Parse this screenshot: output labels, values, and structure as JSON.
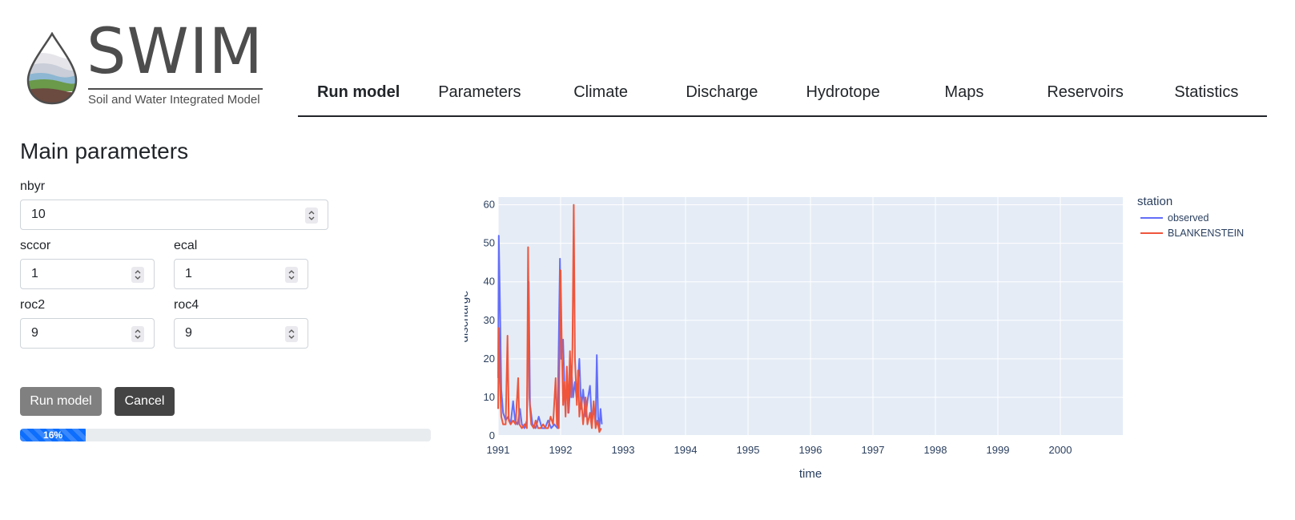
{
  "header": {
    "logo_text": "SWIM",
    "logo_subtitle": "Soil and Water Integrated Model"
  },
  "nav": {
    "tabs": [
      {
        "label": "Run model",
        "active": true
      },
      {
        "label": "Parameters",
        "active": false
      },
      {
        "label": "Climate",
        "active": false
      },
      {
        "label": "Discharge",
        "active": false
      },
      {
        "label": "Hydrotope",
        "active": false
      },
      {
        "label": "Maps",
        "active": false
      },
      {
        "label": "Reservoirs",
        "active": false
      },
      {
        "label": "Statistics",
        "active": false
      }
    ]
  },
  "form": {
    "title": "Main parameters",
    "fields": {
      "nbyr": {
        "label": "nbyr",
        "value": "10"
      },
      "sccor": {
        "label": "sccor",
        "value": "1"
      },
      "ecal": {
        "label": "ecal",
        "value": "1"
      },
      "roc2": {
        "label": "roc2",
        "value": "9"
      },
      "roc4": {
        "label": "roc4",
        "value": "9"
      }
    },
    "run_label": "Run model",
    "cancel_label": "Cancel",
    "progress": {
      "percent": 16,
      "label": "16%"
    }
  },
  "chart_data": {
    "type": "line",
    "xlabel": "time",
    "ylabel": "discharge",
    "xlim": [
      1991.0,
      2001.0
    ],
    "ylim": [
      0,
      62
    ],
    "xticks": [
      "1991",
      "1992",
      "1993",
      "1994",
      "1995",
      "1996",
      "1997",
      "1998",
      "1999",
      "2000"
    ],
    "yticks": [
      0,
      10,
      20,
      30,
      40,
      50,
      60
    ],
    "legend_title": "station",
    "legend_position": "top-right",
    "background": "#e5ecf6",
    "series": [
      {
        "name": "observed",
        "color": "#636efa",
        "points": [
          [
            1991.0,
            15
          ],
          [
            1991.01,
            52
          ],
          [
            1991.03,
            34
          ],
          [
            1991.05,
            12
          ],
          [
            1991.08,
            6
          ],
          [
            1991.12,
            4
          ],
          [
            1991.16,
            5
          ],
          [
            1991.2,
            3
          ],
          [
            1991.24,
            9
          ],
          [
            1991.27,
            4
          ],
          [
            1991.31,
            3
          ],
          [
            1991.35,
            7
          ],
          [
            1991.38,
            3
          ],
          [
            1991.42,
            2
          ],
          [
            1991.46,
            4
          ],
          [
            1991.49,
            40
          ],
          [
            1991.51,
            8
          ],
          [
            1991.55,
            3
          ],
          [
            1991.6,
            2
          ],
          [
            1991.65,
            5
          ],
          [
            1991.7,
            2
          ],
          [
            1991.75,
            2
          ],
          [
            1991.8,
            4
          ],
          [
            1991.85,
            2
          ],
          [
            1991.9,
            3
          ],
          [
            1991.95,
            2
          ],
          [
            1991.99,
            46
          ],
          [
            1992.01,
            20
          ],
          [
            1992.04,
            25
          ],
          [
            1992.07,
            8
          ],
          [
            1992.1,
            12
          ],
          [
            1992.13,
            6
          ],
          [
            1992.17,
            18
          ],
          [
            1992.2,
            10
          ],
          [
            1992.23,
            14
          ],
          [
            1992.26,
            9
          ],
          [
            1992.3,
            20
          ],
          [
            1992.33,
            7
          ],
          [
            1992.36,
            12
          ],
          [
            1992.4,
            5
          ],
          [
            1992.43,
            9
          ],
          [
            1992.47,
            13
          ],
          [
            1992.5,
            4
          ],
          [
            1992.53,
            7
          ],
          [
            1992.56,
            3
          ],
          [
            1992.58,
            21
          ],
          [
            1992.6,
            5
          ],
          [
            1992.62,
            2
          ],
          [
            1992.64,
            7
          ],
          [
            1992.66,
            3
          ]
        ]
      },
      {
        "name": "BLANKENSTEIN",
        "color": "#ef553b",
        "points": [
          [
            1991.0,
            7
          ],
          [
            1991.01,
            28
          ],
          [
            1991.03,
            14
          ],
          [
            1991.05,
            5
          ],
          [
            1991.08,
            3
          ],
          [
            1991.12,
            3
          ],
          [
            1991.15,
            26
          ],
          [
            1991.17,
            4
          ],
          [
            1991.2,
            3
          ],
          [
            1991.24,
            4
          ],
          [
            1991.28,
            3
          ],
          [
            1991.32,
            15
          ],
          [
            1991.34,
            3
          ],
          [
            1991.38,
            2
          ],
          [
            1991.42,
            3
          ],
          [
            1991.46,
            2
          ],
          [
            1991.48,
            49
          ],
          [
            1991.5,
            10
          ],
          [
            1991.53,
            3
          ],
          [
            1991.57,
            2
          ],
          [
            1991.6,
            4
          ],
          [
            1991.64,
            2
          ],
          [
            1991.68,
            2
          ],
          [
            1991.72,
            3
          ],
          [
            1991.76,
            2
          ],
          [
            1991.8,
            2
          ],
          [
            1991.84,
            5
          ],
          [
            1991.88,
            3
          ],
          [
            1991.92,
            15
          ],
          [
            1991.94,
            3
          ],
          [
            1991.97,
            2
          ],
          [
            1992.0,
            43
          ],
          [
            1992.02,
            22
          ],
          [
            1992.04,
            8
          ],
          [
            1992.06,
            14
          ],
          [
            1992.08,
            5
          ],
          [
            1992.1,
            18
          ],
          [
            1992.12,
            6
          ],
          [
            1992.15,
            22
          ],
          [
            1992.17,
            10
          ],
          [
            1992.19,
            23
          ],
          [
            1992.21,
            60
          ],
          [
            1992.23,
            20
          ],
          [
            1992.26,
            8
          ],
          [
            1992.28,
            17
          ],
          [
            1992.3,
            5
          ],
          [
            1992.33,
            10
          ],
          [
            1992.36,
            3
          ],
          [
            1992.4,
            10
          ],
          [
            1992.43,
            3
          ],
          [
            1992.47,
            6
          ],
          [
            1992.5,
            2
          ],
          [
            1992.53,
            9
          ],
          [
            1992.56,
            2
          ],
          [
            1992.59,
            4
          ],
          [
            1992.62,
            1
          ],
          [
            1992.65,
            2
          ]
        ]
      }
    ]
  }
}
